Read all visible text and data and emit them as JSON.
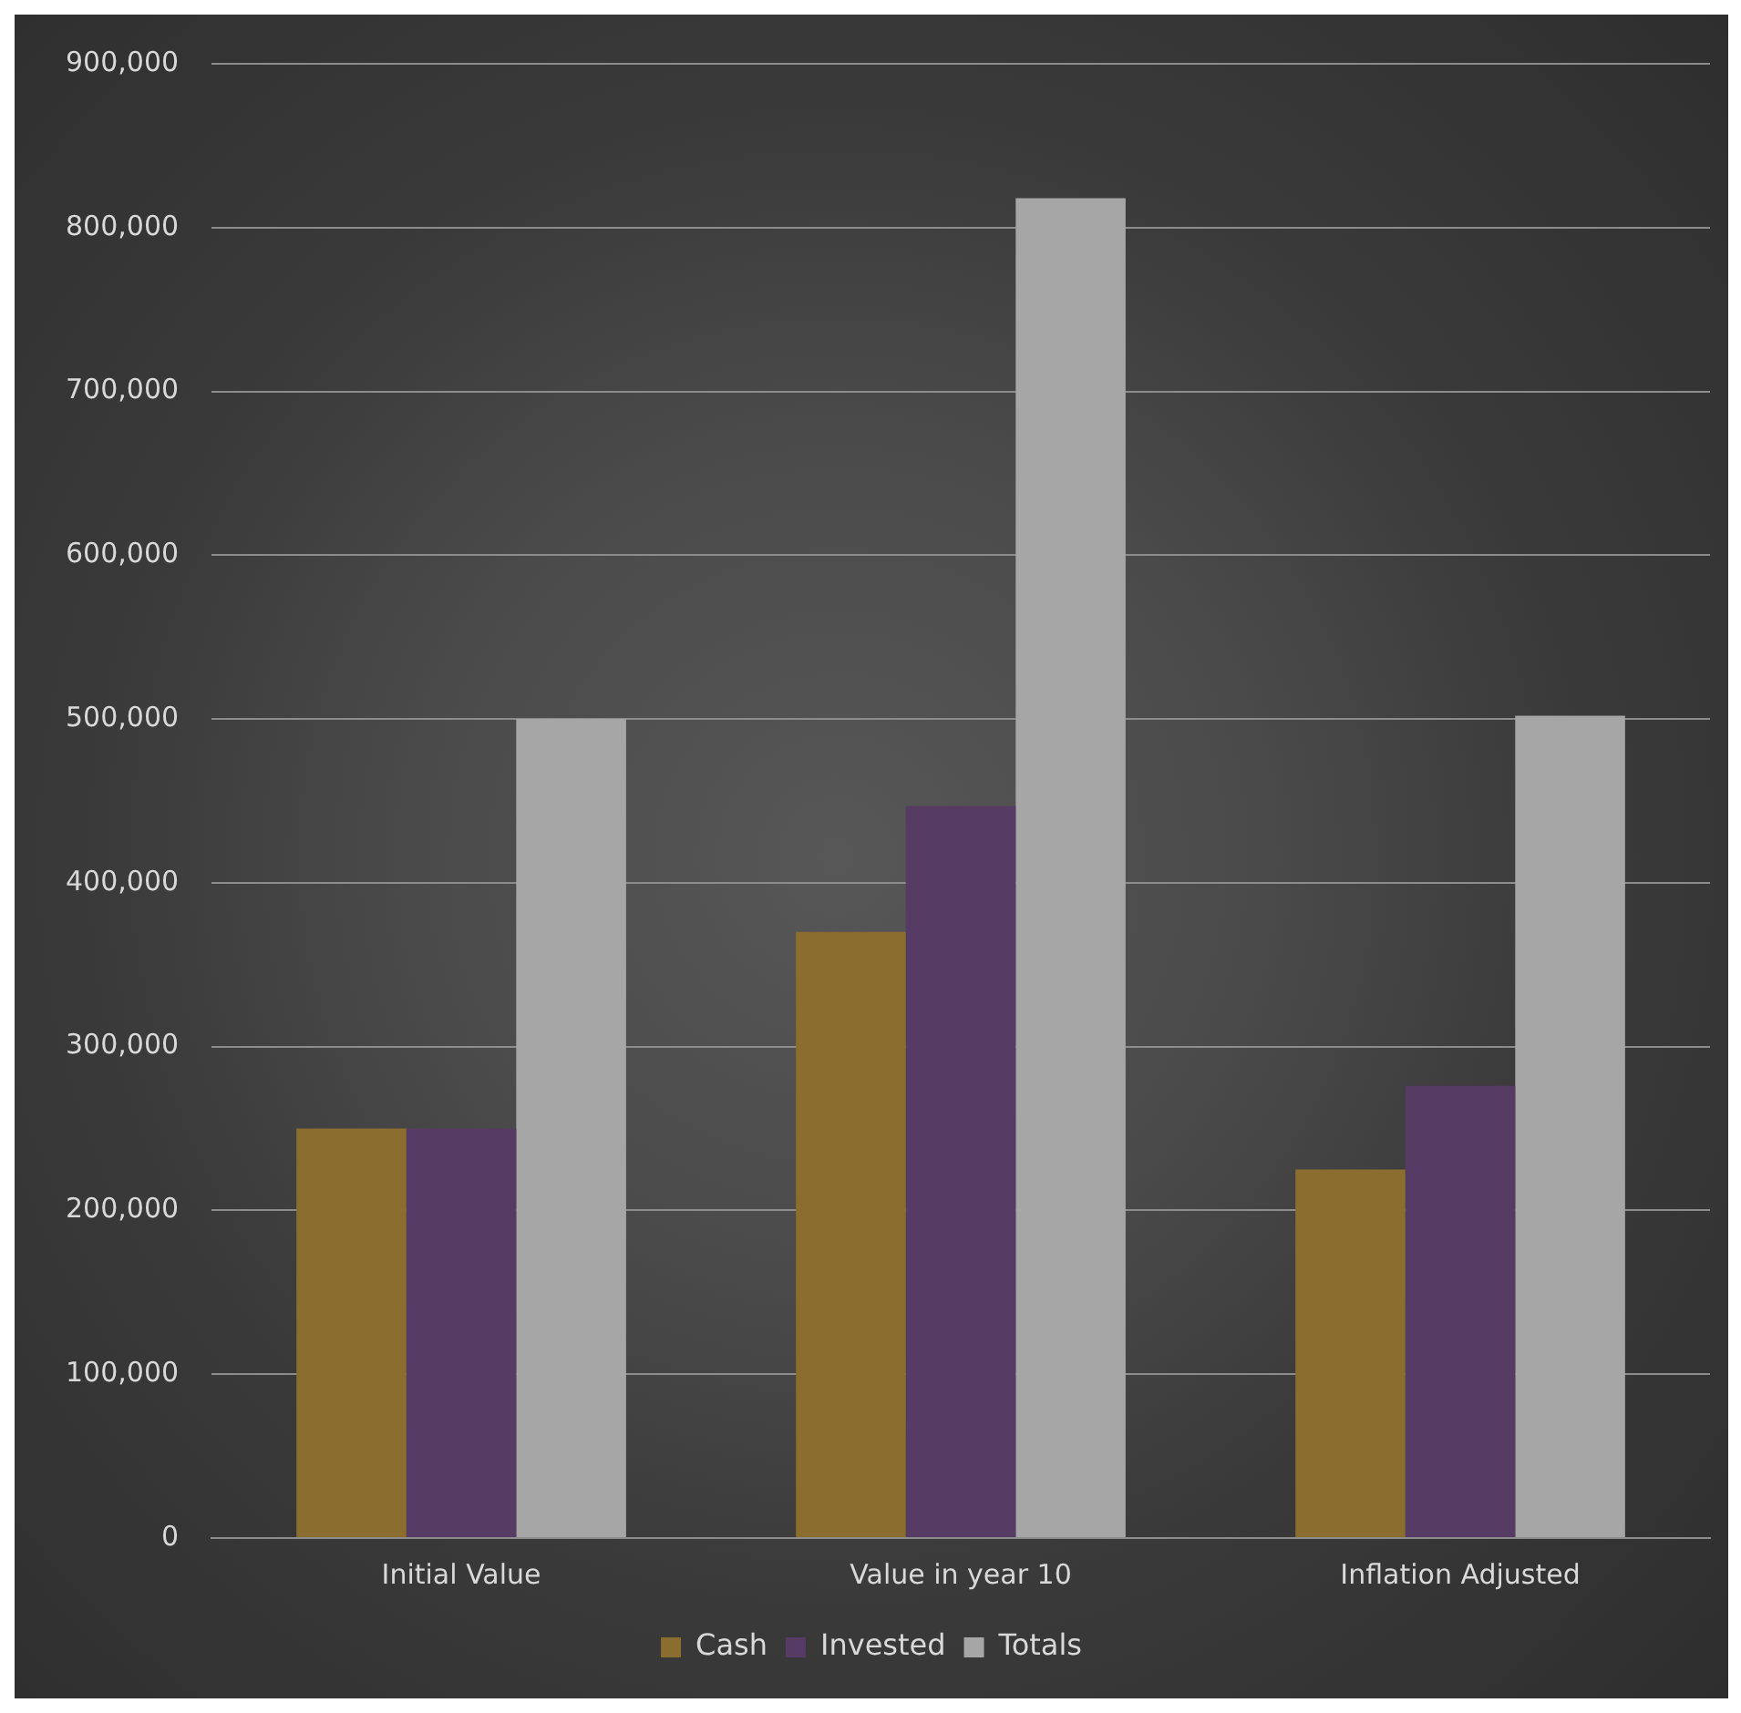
{
  "chart_data": {
    "type": "bar",
    "categories": [
      "Initial Value",
      "Value in year 10",
      "Inflation Adjusted"
    ],
    "series": [
      {
        "name": "Cash",
        "color": "#8a6d2f",
        "values": [
          250000,
          370000,
          225000
        ]
      },
      {
        "name": "Invested",
        "color": "#563b64",
        "values": [
          250000,
          447000,
          276000
        ]
      },
      {
        "name": "Totals",
        "color": "#a6a6a6",
        "values": [
          500000,
          818000,
          502000
        ]
      }
    ],
    "ylim": [
      0,
      900000
    ],
    "yticks": [
      0,
      {
        "value": 100000,
        "label": "100,000"
      },
      {
        "value": 200000,
        "label": "200,000"
      },
      {
        "value": 300000,
        "label": "300,000"
      },
      {
        "value": 400000,
        "label": "400,000"
      },
      {
        "value": 500000,
        "label": "500,000"
      },
      {
        "value": 600000,
        "label": "600,000"
      },
      {
        "value": 700000,
        "label": "700,000"
      },
      {
        "value": 800000,
        "label": "800,000"
      },
      {
        "value": 900000,
        "label": "900,000"
      }
    ],
    "grid": "y",
    "legend": "bottom"
  }
}
